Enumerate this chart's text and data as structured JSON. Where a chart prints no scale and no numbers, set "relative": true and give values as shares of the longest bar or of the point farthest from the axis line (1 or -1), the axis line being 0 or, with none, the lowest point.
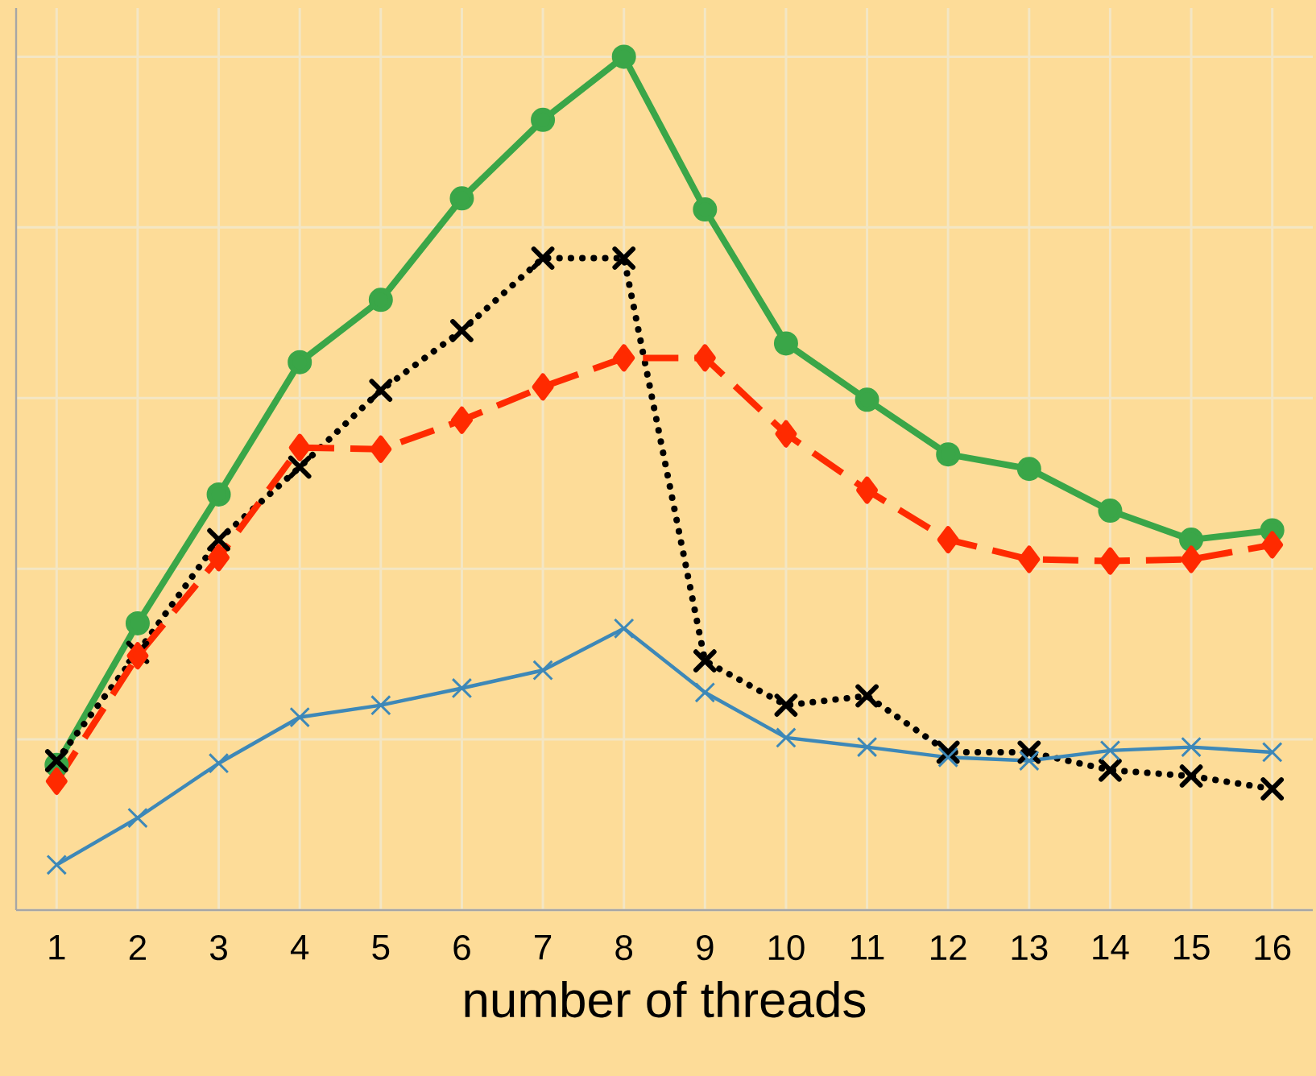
{
  "chart_data": {
    "type": "line",
    "relative": true,
    "xlabel": "number of threads",
    "categories": [
      "1",
      "2",
      "3",
      "4",
      "5",
      "6",
      "7",
      "8",
      "9",
      "10",
      "11",
      "12",
      "13",
      "14",
      "15",
      "16"
    ],
    "grid": true,
    "series": [
      {
        "color": "#3aa648",
        "marker": "circle",
        "line_style": "solid",
        "values": [
          0.17,
          0.336,
          0.487,
          0.642,
          0.715,
          0.834,
          0.926,
          1,
          0.821,
          0.664,
          0.598,
          0.534,
          0.517,
          0.468,
          0.434,
          0.445
        ]
      },
      {
        "color": "#000000",
        "marker": "cross",
        "line_style": "dotted",
        "values": [
          0.175,
          0.302,
          0.434,
          0.519,
          0.609,
          0.679,
          0.764,
          0.764,
          0.292,
          0.24,
          0.251,
          0.185,
          0.185,
          0.164,
          0.157,
          0.142
        ]
      },
      {
        "color": "#ff2a00",
        "marker": "diamond",
        "line_style": "dashed",
        "values": [
          0.151,
          0.298,
          0.413,
          0.542,
          0.54,
          0.574,
          0.613,
          0.647,
          0.647,
          0.558,
          0.492,
          0.434,
          0.411,
          0.409,
          0.411,
          0.428
        ]
      },
      {
        "color": "#3d88b8",
        "marker": "cross",
        "line_style": "solid",
        "values": [
          0.053,
          0.108,
          0.172,
          0.226,
          0.24,
          0.26,
          0.281,
          0.33,
          0.255,
          0.202,
          0.191,
          0.179,
          0.175,
          0.187,
          0.191,
          0.185
        ]
      }
    ]
  }
}
